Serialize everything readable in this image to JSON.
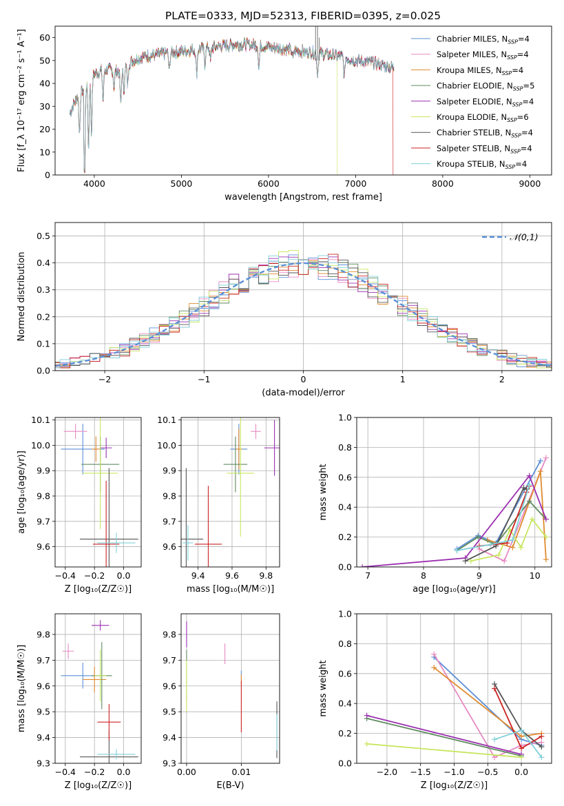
{
  "title": "PLATE=0333, MJD=52313, FIBERID=0395, z=0.025",
  "model_names": [
    "Chabrier MILES",
    "Salpeter MILES",
    "Kroupa MILES",
    "Chabrier ELODIE",
    "Salpeter ELODIE",
    "Kroupa ELODIE",
    "Chabrier STELIB",
    "Salpeter STELIB",
    "Kroupa STELIB"
  ],
  "nssp": [
    4,
    4,
    4,
    5,
    4,
    6,
    4,
    4,
    4
  ],
  "colors": [
    "#5b8fd6",
    "#e68ac3",
    "#e08a2e",
    "#5f8a5f",
    "#9b2fb0",
    "#c8e660",
    "#555555",
    "#cc2222",
    "#7fd0da"
  ],
  "legend_norm": "𝒩(0,1)",
  "chart_data": [
    {
      "id": "spectrum",
      "type": "line",
      "xlabel": "wavelength [Angstrom, rest frame]",
      "ylabel": "Flux [f_λ 10⁻¹⁷ erg cm⁻² s⁻¹ A⁻¹]",
      "xlim": [
        3550,
        9250
      ],
      "ylim": [
        0,
        65
      ],
      "xticks": [
        4000,
        5000,
        6000,
        7000,
        8000,
        9000
      ],
      "yticks": [
        0,
        10,
        20,
        30,
        40,
        50,
        60
      ],
      "continuum": {
        "x": [
          3720,
          3800,
          3880,
          3960,
          4000,
          4100,
          4200,
          4300,
          4400,
          4500,
          4600,
          4800,
          5000,
          5200,
          5400,
          5600,
          5800,
          6000,
          6200,
          6400,
          6600,
          6800,
          7000,
          7200,
          7400
        ],
        "y": [
          27,
          34,
          38,
          42,
          44,
          46,
          46,
          45,
          49,
          51,
          52,
          53,
          54,
          55,
          56,
          57,
          57,
          56,
          55,
          54,
          53,
          52,
          50,
          49,
          47
        ]
      },
      "drops": [
        {
          "model": 5,
          "x": 6790
        },
        {
          "model": 7,
          "x": 7430
        }
      ],
      "legend_position": "upper right"
    },
    {
      "id": "residuals",
      "type": "histogram",
      "xlabel": "(data-model)/error",
      "ylabel": "Normed distribution",
      "xlim": [
        -2.5,
        2.5
      ],
      "ylim": [
        0,
        0.55
      ],
      "xticks": [
        -2,
        -1,
        0,
        1,
        2
      ],
      "yticks": [
        0,
        0.1,
        0.2,
        0.3,
        0.4,
        0.5
      ],
      "bin_width": 0.1,
      "legend_position": "upper right"
    },
    {
      "id": "age_vs_Z",
      "type": "errorbar",
      "xlabel": "Z [log₁₀(Z/Z☉)]",
      "ylabel": "age  [log₁₀(age/yr)]",
      "xlim": [
        -0.47,
        0.12
      ],
      "ylim": [
        9.52,
        10.11
      ],
      "xticks": [
        -0.4,
        -0.2,
        0.0
      ],
      "yticks": [
        9.6,
        9.7,
        9.8,
        9.9,
        10.0,
        10.1
      ],
      "points": [
        {
          "x": -0.28,
          "y": 9.985,
          "xerr": 0.15,
          "yerr": 0.1
        },
        {
          "x": -0.33,
          "y": 10.055,
          "xerr": 0.08,
          "yerr": 0.03
        },
        {
          "x": -0.19,
          "y": 9.985,
          "xerr": 0.03,
          "yerr": 0.05
        },
        {
          "x": -0.16,
          "y": 9.925,
          "xerr": 0.13,
          "yerr": 0.11
        },
        {
          "x": -0.12,
          "y": 9.99,
          "xerr": 0.04,
          "yerr": 0.04
        },
        {
          "x": -0.16,
          "y": 9.89,
          "xerr": 0.12,
          "yerr": 0.22
        },
        {
          "x": -0.1,
          "y": 9.63,
          "xerr": 0.2,
          "yerr": 0.28
        },
        {
          "x": -0.12,
          "y": 9.61,
          "xerr": 0.09,
          "yerr": 0.25
        },
        {
          "x": -0.05,
          "y": 9.615,
          "xerr": 0.13,
          "yerr": 0.04
        }
      ]
    },
    {
      "id": "age_vs_mass",
      "type": "errorbar",
      "xlabel": "mass [log₁₀(M/M☉)]",
      "ylabel": "",
      "xlim": [
        9.3,
        9.88
      ],
      "ylim": [
        9.52,
        10.11
      ],
      "xticks": [
        9.4,
        9.6,
        9.8
      ],
      "yticks": [
        9.6,
        9.7,
        9.8,
        9.9,
        10.0,
        10.1
      ],
      "points": [
        {
          "x": 9.64,
          "y": 9.985,
          "xerr": 0.05,
          "yerr": 0.1
        },
        {
          "x": 9.74,
          "y": 10.055,
          "xerr": 0.03,
          "yerr": 0.03
        },
        {
          "x": 9.64,
          "y": 9.985,
          "xerr": 0.02,
          "yerr": 0.08
        },
        {
          "x": 9.62,
          "y": 9.925,
          "xerr": 0.07,
          "yerr": 0.11
        },
        {
          "x": 9.85,
          "y": 9.99,
          "xerr": 0.06,
          "yerr": 0.11
        },
        {
          "x": 9.65,
          "y": 9.89,
          "xerr": 0.08,
          "yerr": 0.25
        },
        {
          "x": 9.33,
          "y": 9.63,
          "xerr": 0.1,
          "yerr": 0.28
        },
        {
          "x": 9.46,
          "y": 9.61,
          "xerr": 0.08,
          "yerr": 0.23
        },
        {
          "x": 9.34,
          "y": 9.615,
          "xerr": 0.03,
          "yerr": 0.07
        }
      ]
    },
    {
      "id": "weight_vs_age",
      "type": "line",
      "xlabel": "age  [log₁₀(age/yr)]",
      "ylabel": "mass weight",
      "xlim": [
        6.8,
        10.3
      ],
      "ylim": [
        0,
        1.0
      ],
      "xticks": [
        7,
        8,
        9,
        10
      ],
      "yticks": [
        0,
        0.2,
        0.4,
        0.6,
        0.8,
        1.0
      ],
      "series": [
        {
          "x": [
            8.6,
            8.98,
            9.3,
            10.1
          ],
          "y": [
            0.12,
            0.21,
            0.16,
            0.71
          ]
        },
        {
          "x": [
            9.0,
            9.45,
            10.2
          ],
          "y": [
            0.12,
            0.04,
            0.73
          ]
        },
        {
          "x": [
            9.15,
            9.6,
            10.1,
            10.2
          ],
          "y": [
            0.18,
            0.13,
            0.64,
            0.05
          ]
        },
        {
          "x": [
            8.6,
            8.98,
            9.3,
            9.9,
            10.2
          ],
          "y": [
            0.11,
            0.2,
            0.15,
            0.44,
            0.32
          ]
        },
        {
          "x": [
            6.9,
            8.75,
            9.9,
            10.2
          ],
          "y": [
            0.0,
            0.06,
            0.61,
            0.32
          ]
        },
        {
          "x": [
            8.85,
            9.35,
            9.55,
            9.75,
            9.95,
            10.2
          ],
          "y": [
            0.04,
            0.08,
            0.25,
            0.13,
            0.32,
            0.2
          ]
        },
        {
          "x": [
            8.75,
            9.3,
            9.8,
            9.85
          ],
          "y": [
            0.04,
            0.14,
            0.53,
            0.52
          ]
        },
        {
          "x": [
            9.0,
            9.5,
            9.85,
            9.9
          ],
          "y": [
            0.14,
            0.16,
            0.5,
            0.54
          ]
        },
        {
          "x": [
            8.6,
            9.2,
            9.6,
            9.9
          ],
          "y": [
            0.11,
            0.15,
            0.18,
            0.55
          ]
        }
      ]
    },
    {
      "id": "mass_vs_Z",
      "type": "errorbar",
      "xlabel": "Z [log₁₀(Z/Z☉)]",
      "ylabel": "mass [log₁₀(M/M☉)]",
      "xlim": [
        -0.47,
        0.12
      ],
      "ylim": [
        9.3,
        9.88
      ],
      "xticks": [
        -0.4,
        -0.2,
        0.0
      ],
      "yticks": [
        9.3,
        9.4,
        9.5,
        9.6,
        9.7,
        9.8
      ],
      "points": [
        {
          "x": -0.28,
          "y": 9.64,
          "xerr": 0.15,
          "yerr": 0.05
        },
        {
          "x": -0.38,
          "y": 9.735,
          "xerr": 0.04,
          "yerr": 0.03
        },
        {
          "x": -0.2,
          "y": 9.625,
          "xerr": 0.08,
          "yerr": 0.05
        },
        {
          "x": -0.15,
          "y": 9.64,
          "xerr": 0.07,
          "yerr": 0.13
        },
        {
          "x": -0.16,
          "y": 9.835,
          "xerr": 0.06,
          "yerr": 0.02
        },
        {
          "x": -0.16,
          "y": 9.64,
          "xerr": 0.04,
          "yerr": 0.1
        },
        {
          "x": -0.1,
          "y": 9.325,
          "xerr": 0.2,
          "yerr": 0.1
        },
        {
          "x": -0.1,
          "y": 9.46,
          "xerr": 0.08,
          "yerr": 0.07
        },
        {
          "x": -0.05,
          "y": 9.335,
          "xerr": 0.13,
          "yerr": 0.02
        }
      ]
    },
    {
      "id": "mass_vs_ebv",
      "type": "errorbar",
      "xlabel": "E(B-V)",
      "ylabel": "",
      "xlim": [
        -0.001,
        0.017
      ],
      "ylim": [
        9.3,
        9.88
      ],
      "xticks": [
        0.0,
        0.01
      ],
      "yticks": [
        9.3,
        9.4,
        9.5,
        9.6,
        9.7,
        9.8
      ],
      "points": [
        {
          "x": 0.01,
          "y": 9.64,
          "xerr": 0,
          "yerr": 0.02
        },
        {
          "x": 0.007,
          "y": 9.725,
          "xerr": 0,
          "yerr": 0.04
        },
        {
          "x": 0.01,
          "y": 9.625,
          "xerr": 0,
          "yerr": 0.02
        },
        {
          "x": 0.0,
          "y": 9.64,
          "xerr": 0,
          "yerr": 0.1
        },
        {
          "x": 0.0,
          "y": 9.8,
          "xerr": 0,
          "yerr": 0.05
        },
        {
          "x": 0.0,
          "y": 9.6,
          "xerr": 0,
          "yerr": 0.1
        },
        {
          "x": 0.0165,
          "y": 9.43,
          "xerr": 0,
          "yerr": 0.11
        },
        {
          "x": 0.01,
          "y": 9.52,
          "xerr": 0,
          "yerr": 0.1
        },
        {
          "x": 0.0165,
          "y": 9.42,
          "xerr": 0,
          "yerr": 0.07
        }
      ]
    },
    {
      "id": "weight_vs_Z",
      "type": "line",
      "xlabel": "Z [log₁₀(Z/Z☉)]",
      "ylabel": "mass weight",
      "xlim": [
        -2.45,
        0.45
      ],
      "ylim": [
        0,
        1.0
      ],
      "xticks": [
        -2.0,
        -1.5,
        -1.0,
        -0.5,
        0.0
      ],
      "yticks": [
        0,
        0.2,
        0.4,
        0.6,
        0.8,
        1.0
      ],
      "series": [
        {
          "x": [
            -1.3,
            0.0,
            0.3
          ],
          "y": [
            0.71,
            0.16,
            0.12
          ]
        },
        {
          "x": [
            -1.3,
            -0.4,
            0.0,
            0.3
          ],
          "y": [
            0.73,
            0.04,
            0.12,
            0.14
          ]
        },
        {
          "x": [
            -1.3,
            0.0,
            0.3
          ],
          "y": [
            0.64,
            0.18,
            0.2
          ]
        },
        {
          "x": [
            -2.3,
            0.0
          ],
          "y": [
            0.3,
            0.05
          ]
        },
        {
          "x": [
            -2.3,
            0.0
          ],
          "y": [
            0.32,
            0.06
          ]
        },
        {
          "x": [
            -2.3,
            0.0
          ],
          "y": [
            0.13,
            0.04
          ]
        },
        {
          "x": [
            -0.4,
            0.0,
            0.3
          ],
          "y": [
            0.53,
            0.22,
            0.11
          ]
        },
        {
          "x": [
            -0.4,
            0.0,
            0.3
          ],
          "y": [
            0.5,
            0.1,
            0.18
          ]
        },
        {
          "x": [
            -0.4,
            0.0,
            0.3
          ],
          "y": [
            0.16,
            0.22,
            0.04
          ]
        }
      ]
    }
  ]
}
